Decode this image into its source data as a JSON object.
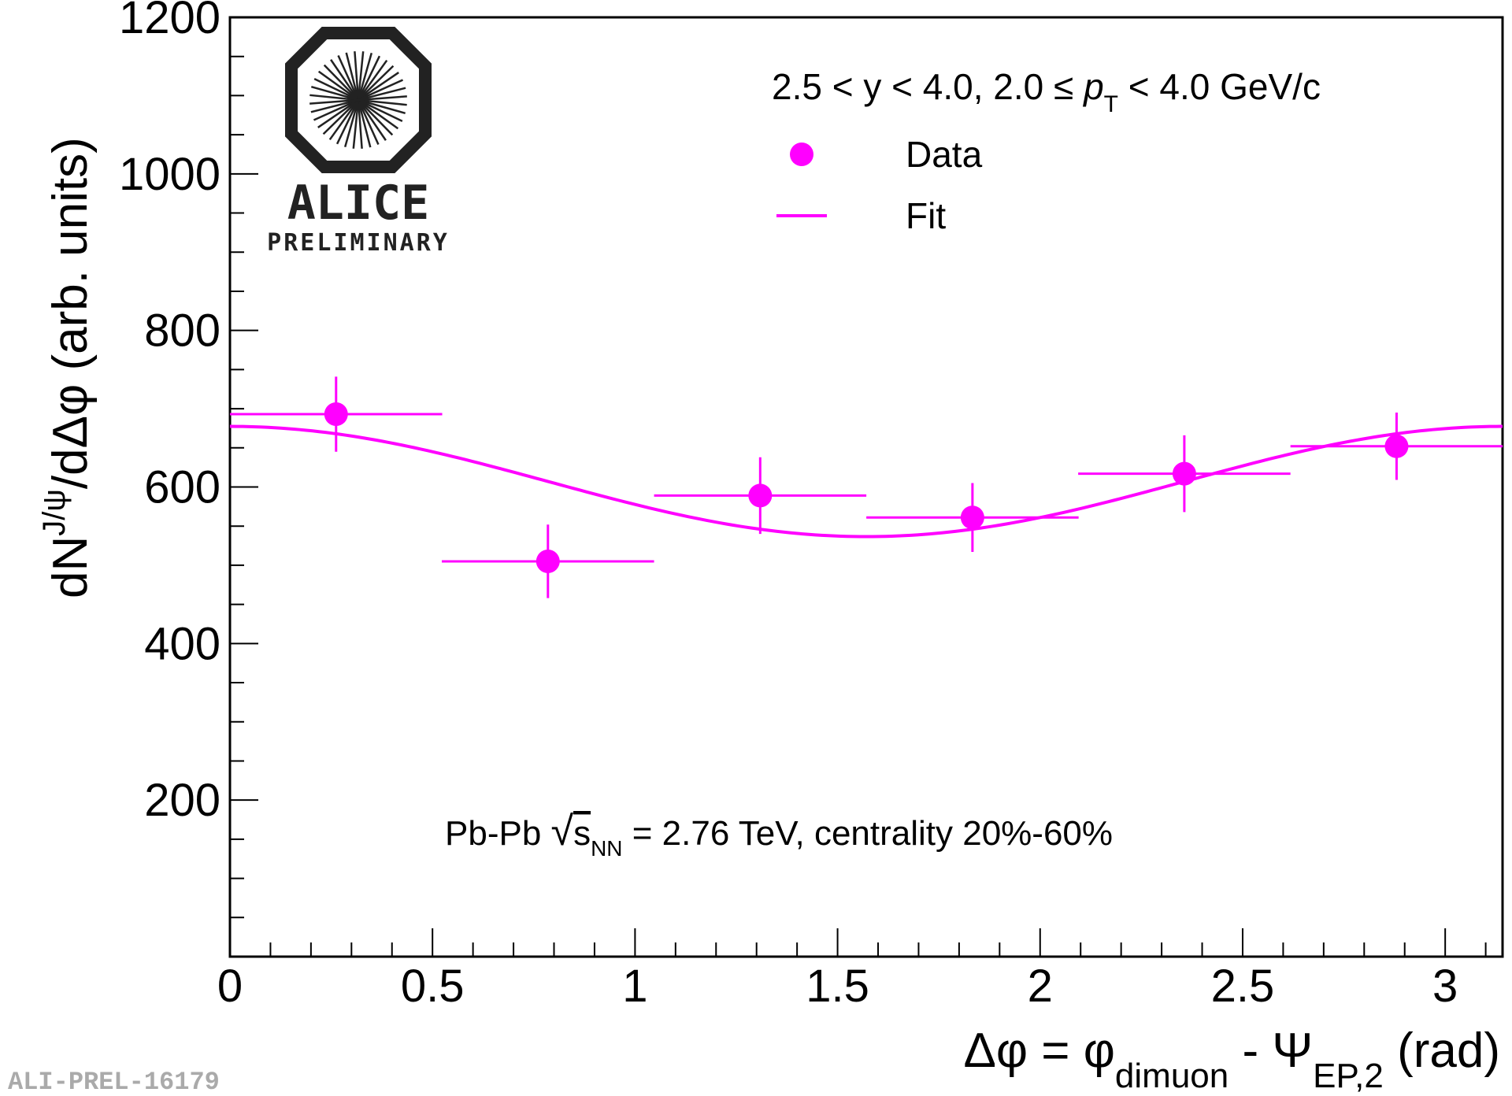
{
  "chart_data": {
    "type": "scatter",
    "xlim": [
      0,
      3.1416
    ],
    "ylim": [
      0,
      1200
    ],
    "x_ticks": [
      "0",
      "0.5",
      "1",
      "1.5",
      "2",
      "2.5",
      "3"
    ],
    "y_ticks": [
      "200",
      "400",
      "600",
      "800",
      "1000",
      "1200"
    ],
    "ylabel": "dN^{J/ψ}/dΔφ (arb. units)",
    "xlabel": "Δφ = φ_dimuon - Ψ_EP,2 (rad)",
    "kinematics": "2.5 < y < 4.0, 2.0 ≤ p_T < 4.0 GeV/c",
    "system": "Pb-Pb √s_NN = 2.76 TeV, centrality 20%-60%",
    "legend": {
      "placement": "top-right",
      "data_label": "Data",
      "fit_label": "Fit"
    },
    "series": [
      {
        "name": "Data",
        "marker": "circle",
        "color": "#ff00ff",
        "points": [
          {
            "x": 0.262,
            "y": 693,
            "xerr": 0.262,
            "yerr": 48
          },
          {
            "x": 0.785,
            "y": 505,
            "xerr": 0.262,
            "yerr": 47
          },
          {
            "x": 1.309,
            "y": 589,
            "xerr": 0.262,
            "yerr": 49
          },
          {
            "x": 1.833,
            "y": 561,
            "xerr": 0.262,
            "yerr": 44
          },
          {
            "x": 2.356,
            "y": 617,
            "xerr": 0.262,
            "yerr": 49
          },
          {
            "x": 2.88,
            "y": 652,
            "xerr": 0.262,
            "yerr": 43
          }
        ]
      },
      {
        "name": "Fit",
        "color": "#ff00ff",
        "line": true,
        "model": "A * (1 + 2 v2 cos(2Δφ))",
        "A": 607,
        "v2": 0.058
      }
    ]
  },
  "logo": {
    "name": "ALICE",
    "subtitle": "PRELIMINARY"
  },
  "figure_id": "ALI-PREL-16179"
}
